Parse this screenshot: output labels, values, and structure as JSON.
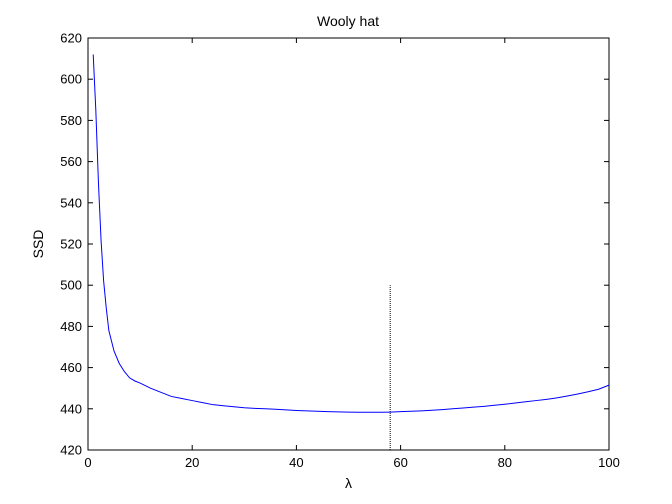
{
  "chart_data": {
    "type": "line",
    "title": "Wooly hat",
    "xlabel": "λ",
    "ylabel": "SSD",
    "xlim": [
      0,
      100
    ],
    "ylim": [
      420,
      620
    ],
    "xticks": [
      0,
      20,
      40,
      60,
      80,
      100
    ],
    "yticks": [
      420,
      440,
      460,
      480,
      500,
      520,
      540,
      560,
      580,
      600,
      620
    ],
    "grid": false,
    "legend": "none",
    "series": [
      {
        "color": "#0000ff",
        "x": [
          1,
          1.5,
          2,
          2.5,
          3,
          3.5,
          4,
          5,
          6,
          7,
          8,
          9,
          10,
          12,
          14,
          16,
          18,
          20,
          22,
          24,
          26,
          28,
          30,
          32,
          34,
          36,
          38,
          40,
          42,
          44,
          46,
          48,
          50,
          52,
          54,
          56,
          58,
          60,
          62,
          64,
          66,
          68,
          70,
          72,
          74,
          76,
          78,
          80,
          82,
          84,
          86,
          88,
          90,
          92,
          94,
          96,
          98,
          100
        ],
        "values": [
          612,
          585,
          550,
          522,
          502,
          489,
          478,
          468,
          462,
          458,
          455,
          453.5,
          452.5,
          450,
          448,
          446,
          445,
          444,
          443,
          442,
          441.5,
          441,
          440.5,
          440.2,
          440,
          439.8,
          439.5,
          439.2,
          439,
          438.8,
          438.6,
          438.5,
          438.4,
          438.3,
          438.3,
          438.3,
          438.4,
          438.6,
          438.8,
          439,
          439.3,
          439.6,
          440,
          440.4,
          440.8,
          441.2,
          441.7,
          442.2,
          442.8,
          443.4,
          444,
          444.6,
          445.3,
          446.2,
          447.2,
          448.3,
          449.5,
          451.5
        ]
      }
    ],
    "marker_line": {
      "x": 58,
      "y_from": 420,
      "y_to": 500,
      "color": "#000000"
    }
  }
}
